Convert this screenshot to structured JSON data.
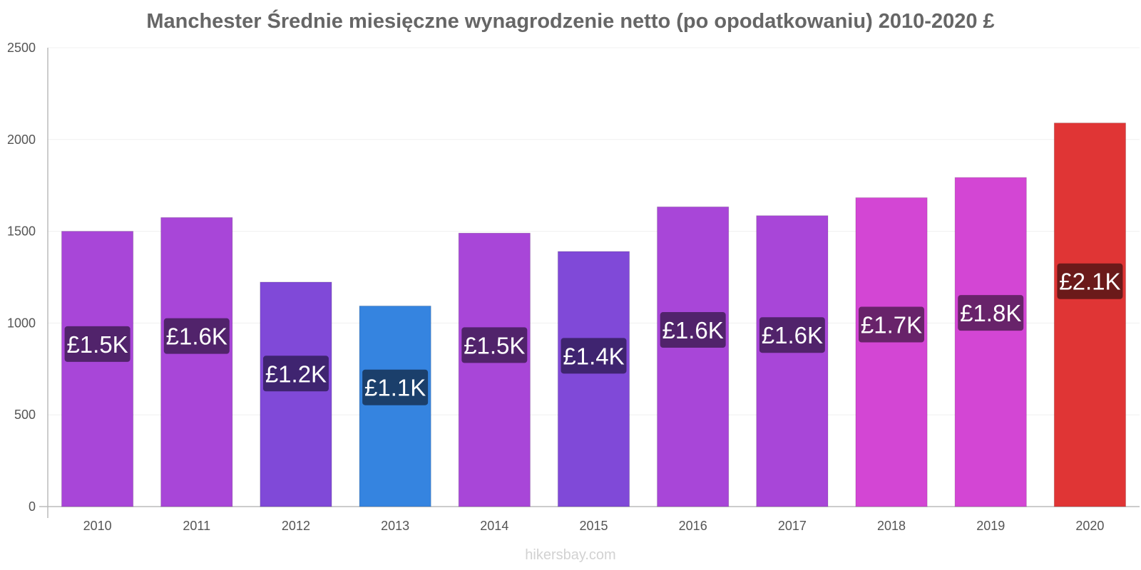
{
  "chart_data": {
    "type": "bar",
    "title": "Manchester Średnie miesięczne wynagrodzenie netto (po opodatkowaniu) 2010-2020 £",
    "xlabel": "",
    "ylabel": "",
    "ylim": [
      0,
      2500
    ],
    "yticks": [
      "0",
      "500",
      "1000",
      "1500",
      "2000",
      "2500"
    ],
    "grid": true,
    "categories": [
      "2010",
      "2011",
      "2012",
      "2013",
      "2014",
      "2015",
      "2016",
      "2017",
      "2018",
      "2019",
      "2020"
    ],
    "values": [
      1500,
      1575,
      1223,
      1093,
      1490,
      1390,
      1633,
      1585,
      1683,
      1793,
      2090
    ],
    "data_labels": [
      "£1.5K",
      "£1.6K",
      "£1.2K",
      "£1.1K",
      "£1.5K",
      "£1.4K",
      "£1.6K",
      "£1.6K",
      "£1.7K",
      "£1.8K",
      "£2.1K"
    ],
    "bar_colors": [
      "#a846d8",
      "#a846d8",
      "#8049d8",
      "#3584e0",
      "#a846d8",
      "#8049d8",
      "#a846d8",
      "#a846d8",
      "#d346d4",
      "#d346d4",
      "#e03535"
    ],
    "label_colors": [
      "#51236b",
      "#51236b",
      "#3f2470",
      "#1b3f6b",
      "#51236b",
      "#3f2470",
      "#51236b",
      "#51236b",
      "#68236a",
      "#68236a",
      "#6b1a1a"
    ]
  },
  "watermark": "hikersbay.com"
}
